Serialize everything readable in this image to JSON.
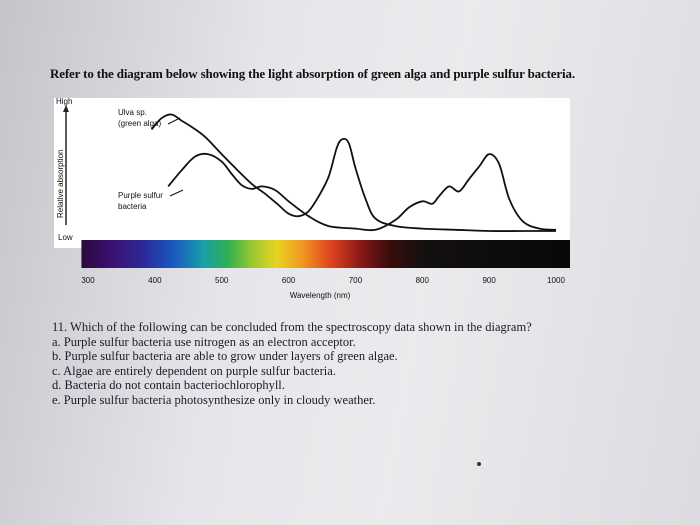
{
  "header": {
    "text": "Refer to the diagram below showing the light absorption of green alga and purple sulfur bacteria."
  },
  "chart_data": {
    "type": "line",
    "ylabel": "Relative absorption",
    "y_high_label": "High",
    "y_low_label": "Low",
    "xlabel": "Wavelength (nm)",
    "x_ticks": [
      300,
      400,
      500,
      600,
      700,
      800,
      900,
      1000
    ],
    "xlim": [
      300,
      1000
    ],
    "ylim": [
      0,
      1
    ],
    "spectrum_band": {
      "range": [
        350,
        1000
      ],
      "description": "visible light spectrum color bar"
    },
    "series": [
      {
        "name": "Ulva sp. (green alga)",
        "label_lines": [
          "Ulva sp.",
          "(green alga)"
        ],
        "color": "#111111",
        "x": [
          395,
          410,
          425,
          440,
          455,
          475,
          500,
          520,
          545,
          565,
          585,
          600,
          615,
          630,
          645,
          660,
          672,
          680,
          690,
          700,
          715,
          730,
          760,
          800,
          850,
          900,
          950,
          1000
        ],
        "y": [
          0.86,
          0.95,
          0.98,
          0.93,
          0.88,
          0.8,
          0.66,
          0.55,
          0.42,
          0.34,
          0.25,
          0.18,
          0.16,
          0.2,
          0.32,
          0.48,
          0.71,
          0.78,
          0.75,
          0.55,
          0.3,
          0.14,
          0.08,
          0.06,
          0.05,
          0.04,
          0.04,
          0.04
        ]
      },
      {
        "name": "Purple sulfur bacteria",
        "label_lines": [
          "Purple sulfur",
          "bacteria"
        ],
        "color": "#111111",
        "x": [
          420,
          440,
          460,
          480,
          500,
          515,
          530,
          545,
          560,
          580,
          600,
          630,
          660,
          700,
          730,
          760,
          780,
          800,
          815,
          825,
          840,
          855,
          870,
          885,
          900,
          915,
          930,
          950,
          975,
          1000
        ],
        "y": [
          0.4,
          0.53,
          0.64,
          0.66,
          0.6,
          0.5,
          0.41,
          0.38,
          0.4,
          0.37,
          0.28,
          0.16,
          0.08,
          0.06,
          0.05,
          0.13,
          0.23,
          0.28,
          0.26,
          0.32,
          0.4,
          0.36,
          0.46,
          0.56,
          0.66,
          0.58,
          0.3,
          0.12,
          0.06,
          0.05
        ]
      }
    ]
  },
  "question": {
    "stem": "11. Which of the following can be concluded from the spectroscopy data shown in the diagram?",
    "options": [
      "a. Purple sulfur bacteria use nitrogen as an electron acceptor.",
      "b. Purple sulfur bacteria are able to grow under layers of green algae.",
      "c. Algae are entirely dependent on purple sulfur bacteria.",
      "d. Bacteria do not contain bacteriochlorophyll.",
      "e. Purple sulfur bacteria photosynthesize only in cloudy weather."
    ]
  }
}
